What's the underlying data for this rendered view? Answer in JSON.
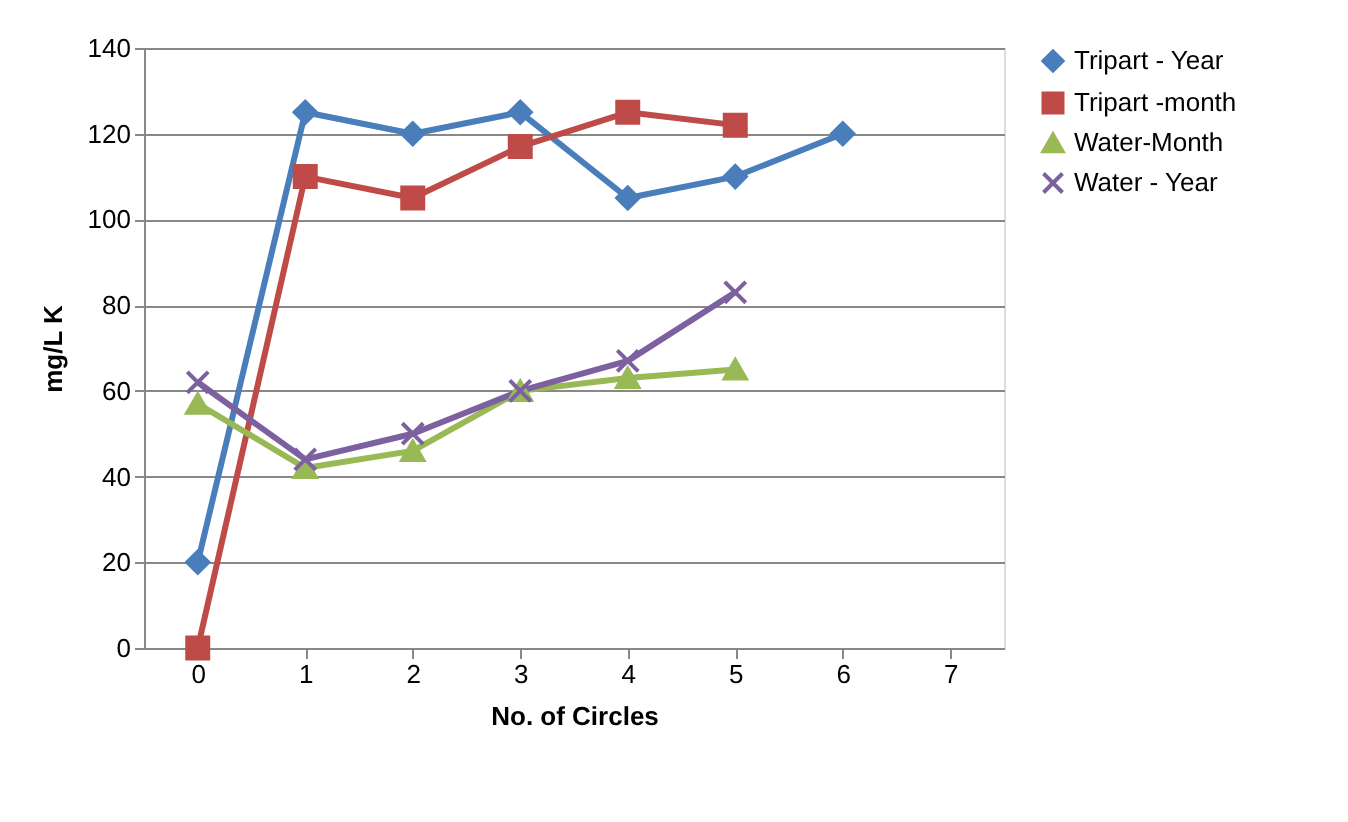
{
  "chart_data": {
    "type": "line",
    "xlabel": "No. of Circles",
    "ylabel": "mg/L K",
    "categories": [
      "0",
      "1",
      "2",
      "3",
      "4",
      "5",
      "6",
      "7"
    ],
    "series": [
      {
        "name": "Tripart - Year",
        "color": "#4a7ebb",
        "marker": "diamond",
        "values": [
          20,
          125,
          120,
          125,
          105,
          110,
          120,
          null
        ]
      },
      {
        "name": "Tripart -month",
        "color": "#be4b48",
        "marker": "square",
        "values": [
          0,
          110,
          105,
          117,
          125,
          122,
          null,
          null
        ]
      },
      {
        "name": "Water-Month",
        "color": "#98b954",
        "marker": "triangle",
        "values": [
          57,
          42,
          46,
          60,
          63,
          65,
          null,
          null
        ]
      },
      {
        "name": "Water - Year",
        "color": "#7d60a0",
        "marker": "cross",
        "values": [
          62,
          44,
          50,
          60,
          67,
          83,
          null,
          null
        ]
      }
    ],
    "ylim": [
      0,
      140
    ],
    "yticks": [
      0,
      20,
      40,
      60,
      80,
      100,
      120,
      140
    ],
    "grid": "y",
    "legend": "right",
    "line_style": "solid"
  }
}
